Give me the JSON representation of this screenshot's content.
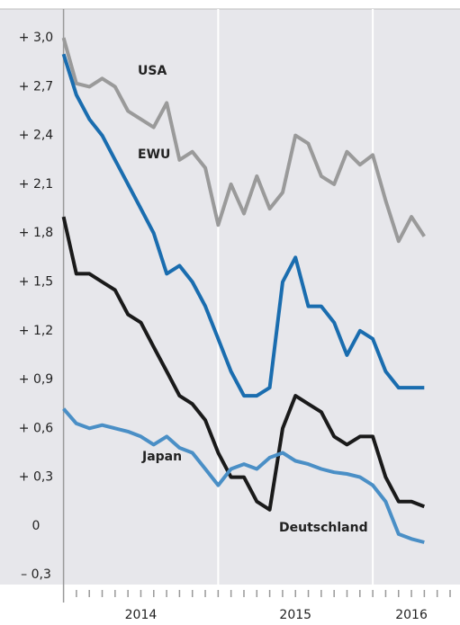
{
  "chart_data": {
    "type": "line",
    "x": [
      2014,
      2014.083,
      2014.167,
      2014.25,
      2014.333,
      2014.417,
      2014.5,
      2014.583,
      2014.667,
      2014.75,
      2014.833,
      2014.917,
      2015,
      2015.083,
      2015.167,
      2015.25,
      2015.333,
      2015.417,
      2015.5,
      2015.583,
      2015.667,
      2015.75,
      2015.833,
      2015.917,
      2016,
      2016.083,
      2016.167,
      2016.25,
      2016.333
    ],
    "series": [
      {
        "name": "USA",
        "color": "#9a9a9a",
        "values": [
          3.0,
          2.72,
          2.7,
          2.75,
          2.7,
          2.55,
          2.5,
          2.45,
          2.6,
          2.25,
          2.3,
          2.2,
          1.85,
          2.1,
          1.92,
          2.15,
          1.95,
          2.05,
          2.4,
          2.35,
          2.15,
          2.1,
          2.3,
          2.22,
          2.28,
          2.0,
          1.75,
          1.9,
          1.78
        ]
      },
      {
        "name": "EWU",
        "color": "#1a6daf",
        "values": [
          2.9,
          2.65,
          2.5,
          2.4,
          2.25,
          2.1,
          1.95,
          1.8,
          1.55,
          1.6,
          1.5,
          1.35,
          1.15,
          0.95,
          0.8,
          0.8,
          0.85,
          1.5,
          1.65,
          1.35,
          1.35,
          1.25,
          1.05,
          1.2,
          1.15,
          0.95,
          0.85,
          0.85,
          0.85
        ]
      },
      {
        "name": "Deutschland",
        "color": "#1a1a1a",
        "values": [
          1.9,
          1.55,
          1.55,
          1.5,
          1.45,
          1.3,
          1.25,
          1.1,
          0.95,
          0.8,
          0.75,
          0.65,
          0.45,
          0.3,
          0.3,
          0.15,
          0.1,
          0.6,
          0.8,
          0.75,
          0.7,
          0.55,
          0.5,
          0.55,
          0.55,
          0.3,
          0.15,
          0.15,
          0.12
        ]
      },
      {
        "name": "Japan",
        "color": "#4a8fc6",
        "values": [
          0.72,
          0.63,
          0.6,
          0.62,
          0.6,
          0.58,
          0.55,
          0.5,
          0.55,
          0.48,
          0.45,
          0.35,
          0.25,
          0.35,
          0.38,
          0.35,
          0.42,
          0.45,
          0.4,
          0.38,
          0.35,
          0.33,
          0.32,
          0.3,
          0.25,
          0.15,
          -0.05,
          -0.08,
          -0.1
        ]
      }
    ],
    "xlim": [
      2013.95,
      2016.5
    ],
    "xticks": [
      {
        "value": 2014.5,
        "label": "2014"
      },
      {
        "value": 2015.5,
        "label": "2015"
      },
      {
        "value": 2016.25,
        "label": "2016"
      }
    ],
    "xgrid": [
      2014,
      2015,
      2016
    ],
    "ylim": [
      -0.36,
      3.1
    ],
    "yticks": [
      {
        "value": -0.3,
        "label": "– 0,3"
      },
      0,
      {
        "value": 0.3,
        "label": "+ 0,3"
      },
      {
        "value": 0.6,
        "label": "+ 0,6"
      },
      {
        "value": 0.9,
        "label": "+ 0,9"
      },
      {
        "value": 1.2,
        "label": "+ 1,2"
      },
      {
        "value": 1.5,
        "label": "+ 1,5"
      },
      {
        "value": 1.8,
        "label": "+ 1,8"
      },
      {
        "value": 2.1,
        "label": "+ 2,1"
      },
      {
        "value": 2.4,
        "label": "+ 2,4"
      },
      {
        "value": 2.7,
        "label": "+ 2,7"
      },
      {
        "value": 3.0,
        "label": "+ 3,0"
      }
    ],
    "grid": false
  }
}
